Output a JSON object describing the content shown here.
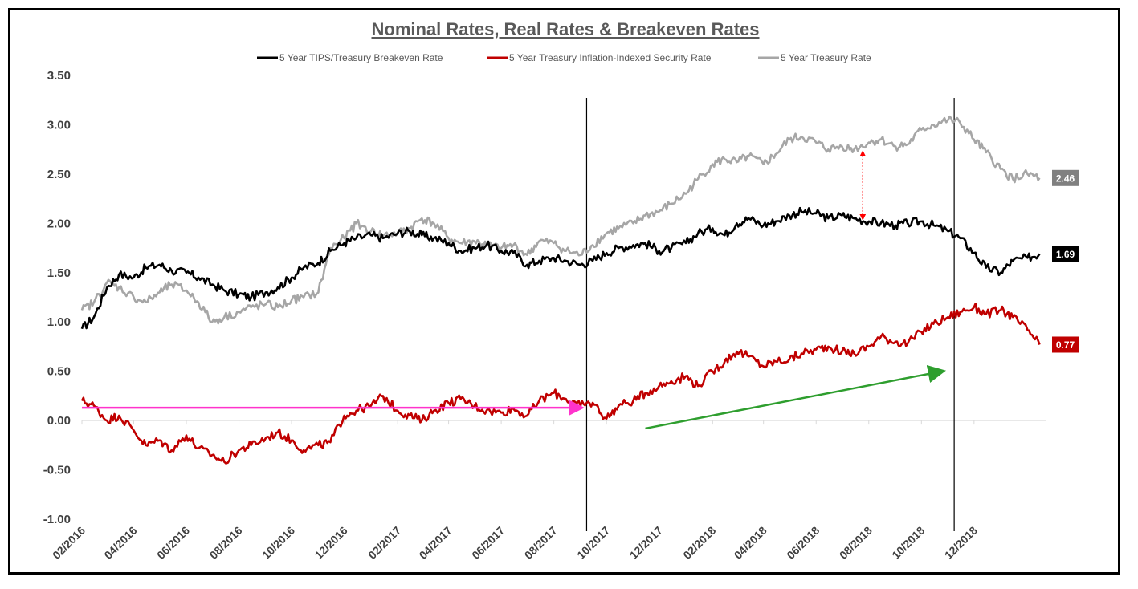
{
  "chart_data": {
    "type": "line",
    "title": "Nominal Rates, Real Rates & Breakeven Rates",
    "ylim": [
      -1.0,
      3.5
    ],
    "yticks": [
      "3.50",
      "3.00",
      "2.50",
      "2.00",
      "1.50",
      "1.00",
      "0.50",
      "0.00",
      "-0.50",
      "-1.00"
    ],
    "ytick_values": [
      3.5,
      3.0,
      2.5,
      2.0,
      1.5,
      1.0,
      0.5,
      0.0,
      -0.5,
      -1.0
    ],
    "xlim": [
      "2016-02",
      "2019-01"
    ],
    "xticks": [
      "02/2016",
      "04/2016",
      "06/2016",
      "08/2016",
      "10/2016",
      "12/2016",
      "02/2017",
      "04/2017",
      "06/2017",
      "08/2017",
      "10/2017",
      "12/2017",
      "02/2018",
      "04/2018",
      "06/2018",
      "08/2018",
      "10/2018",
      "12/2018"
    ],
    "grid": false,
    "legend_position": "top",
    "series": [
      {
        "name": "5 Year TIPS/Treasury Breakeven Rate",
        "color": "#000000",
        "end_label": "1.69",
        "x": [
          "2016-02-01",
          "2016-02-15",
          "2016-03-01",
          "2016-03-15",
          "2016-04-01",
          "2016-04-15",
          "2016-05-01",
          "2016-05-15",
          "2016-06-01",
          "2016-06-15",
          "2016-07-01",
          "2016-07-15",
          "2016-08-01",
          "2016-08-15",
          "2016-09-01",
          "2016-09-15",
          "2016-10-01",
          "2016-10-15",
          "2016-11-01",
          "2016-11-15",
          "2016-12-01",
          "2016-12-15",
          "2017-01-01",
          "2017-01-15",
          "2017-02-01",
          "2017-02-15",
          "2017-03-01",
          "2017-03-15",
          "2017-04-01",
          "2017-04-15",
          "2017-05-01",
          "2017-05-15",
          "2017-06-01",
          "2017-06-15",
          "2017-07-01",
          "2017-07-15",
          "2017-08-01",
          "2017-08-15",
          "2017-09-01",
          "2017-09-15",
          "2017-10-01",
          "2017-10-15",
          "2017-11-01",
          "2017-11-15",
          "2017-12-01",
          "2017-12-15",
          "2018-01-01",
          "2018-01-15",
          "2018-02-01",
          "2018-02-15",
          "2018-03-01",
          "2018-03-15",
          "2018-04-01",
          "2018-04-15",
          "2018-05-01",
          "2018-05-15",
          "2018-06-01",
          "2018-06-15",
          "2018-07-01",
          "2018-07-15",
          "2018-08-01",
          "2018-08-15",
          "2018-09-01",
          "2018-09-15",
          "2018-10-01",
          "2018-10-15",
          "2018-11-01",
          "2018-11-15",
          "2018-12-01",
          "2018-12-15",
          "2019-01-01",
          "2019-01-15",
          "2019-02-01",
          "2019-02-15"
        ],
        "values": [
          0.93,
          1.05,
          1.35,
          1.48,
          1.45,
          1.55,
          1.58,
          1.52,
          1.5,
          1.45,
          1.38,
          1.32,
          1.28,
          1.25,
          1.3,
          1.35,
          1.45,
          1.55,
          1.6,
          1.72,
          1.8,
          1.85,
          1.88,
          1.85,
          1.9,
          1.92,
          1.88,
          1.85,
          1.8,
          1.72,
          1.75,
          1.78,
          1.72,
          1.7,
          1.58,
          1.62,
          1.65,
          1.62,
          1.58,
          1.62,
          1.7,
          1.75,
          1.78,
          1.8,
          1.72,
          1.75,
          1.8,
          1.9,
          1.95,
          1.88,
          2.0,
          2.05,
          1.98,
          2.02,
          2.08,
          2.12,
          2.1,
          2.05,
          2.08,
          2.05,
          2.02,
          2.0,
          1.98,
          2.0,
          2.02,
          1.98,
          1.92,
          1.85,
          1.7,
          1.55,
          1.5,
          1.62,
          1.65,
          1.69
        ]
      },
      {
        "name": "5 Year Treasury Inflation-Indexed Security Rate",
        "color": "#c00000",
        "end_label": "0.77",
        "x": [
          "2016-02-01",
          "2016-02-15",
          "2016-03-01",
          "2016-03-15",
          "2016-04-01",
          "2016-04-15",
          "2016-05-01",
          "2016-05-15",
          "2016-06-01",
          "2016-06-15",
          "2016-07-01",
          "2016-07-15",
          "2016-08-01",
          "2016-08-15",
          "2016-09-01",
          "2016-09-15",
          "2016-10-01",
          "2016-10-15",
          "2016-11-01",
          "2016-11-15",
          "2016-12-01",
          "2016-12-15",
          "2017-01-01",
          "2017-01-15",
          "2017-02-01",
          "2017-02-15",
          "2017-03-01",
          "2017-03-15",
          "2017-04-01",
          "2017-04-15",
          "2017-05-01",
          "2017-05-15",
          "2017-06-01",
          "2017-06-15",
          "2017-07-01",
          "2017-07-15",
          "2017-08-01",
          "2017-08-15",
          "2017-09-01",
          "2017-09-15",
          "2017-10-01",
          "2017-10-15",
          "2017-11-01",
          "2017-11-15",
          "2017-12-01",
          "2017-12-15",
          "2018-01-01",
          "2018-01-15",
          "2018-02-01",
          "2018-02-15",
          "2018-03-01",
          "2018-03-15",
          "2018-04-01",
          "2018-04-15",
          "2018-05-01",
          "2018-05-15",
          "2018-06-01",
          "2018-06-15",
          "2018-07-01",
          "2018-07-15",
          "2018-08-01",
          "2018-08-15",
          "2018-09-01",
          "2018-09-15",
          "2018-10-01",
          "2018-10-15",
          "2018-11-01",
          "2018-11-15",
          "2018-12-01",
          "2018-12-15",
          "2019-01-01",
          "2019-01-15",
          "2019-02-01",
          "2019-02-15"
        ],
        "values": [
          0.2,
          0.15,
          0.0,
          0.05,
          -0.1,
          -0.25,
          -0.2,
          -0.3,
          -0.15,
          -0.28,
          -0.35,
          -0.42,
          -0.3,
          -0.25,
          -0.18,
          -0.12,
          -0.2,
          -0.3,
          -0.25,
          -0.22,
          0.05,
          0.1,
          0.15,
          0.25,
          0.1,
          0.05,
          0.0,
          0.1,
          0.18,
          0.22,
          0.15,
          0.1,
          0.08,
          0.12,
          0.05,
          0.2,
          0.28,
          0.22,
          0.15,
          0.18,
          0.02,
          0.15,
          0.2,
          0.28,
          0.35,
          0.4,
          0.45,
          0.35,
          0.5,
          0.6,
          0.7,
          0.65,
          0.55,
          0.6,
          0.62,
          0.68,
          0.72,
          0.75,
          0.7,
          0.68,
          0.75,
          0.85,
          0.8,
          0.78,
          0.9,
          0.98,
          1.05,
          1.1,
          1.15,
          1.08,
          1.12,
          1.05,
          0.92,
          0.77
        ]
      },
      {
        "name": "5 Year Treasury Rate",
        "color": "#a6a6a6",
        "end_label": "2.46",
        "x": [
          "2016-02-01",
          "2016-02-15",
          "2016-03-01",
          "2016-03-15",
          "2016-04-01",
          "2016-04-15",
          "2016-05-01",
          "2016-05-15",
          "2016-06-01",
          "2016-06-15",
          "2016-07-01",
          "2016-07-15",
          "2016-08-01",
          "2016-08-15",
          "2016-09-01",
          "2016-09-15",
          "2016-10-01",
          "2016-10-15",
          "2016-11-01",
          "2016-11-15",
          "2016-12-01",
          "2016-12-15",
          "2017-01-01",
          "2017-01-15",
          "2017-02-01",
          "2017-02-15",
          "2017-03-01",
          "2017-03-15",
          "2017-04-01",
          "2017-04-15",
          "2017-05-01",
          "2017-05-15",
          "2017-06-01",
          "2017-06-15",
          "2017-07-01",
          "2017-07-15",
          "2017-08-01",
          "2017-08-15",
          "2017-09-01",
          "2017-09-15",
          "2017-10-01",
          "2017-10-15",
          "2017-11-01",
          "2017-11-15",
          "2017-12-01",
          "2017-12-15",
          "2018-01-01",
          "2018-01-15",
          "2018-02-01",
          "2018-02-15",
          "2018-03-01",
          "2018-03-15",
          "2018-04-01",
          "2018-04-15",
          "2018-05-01",
          "2018-05-15",
          "2018-06-01",
          "2018-06-15",
          "2018-07-01",
          "2018-07-15",
          "2018-08-01",
          "2018-08-15",
          "2018-09-01",
          "2018-09-15",
          "2018-10-01",
          "2018-10-15",
          "2018-11-01",
          "2018-11-15",
          "2018-12-01",
          "2018-12-15",
          "2019-01-01",
          "2019-01-15",
          "2019-02-01",
          "2019-02-15"
        ],
        "values": [
          1.12,
          1.2,
          1.4,
          1.35,
          1.25,
          1.2,
          1.3,
          1.38,
          1.32,
          1.2,
          1.0,
          1.05,
          1.1,
          1.15,
          1.18,
          1.15,
          1.22,
          1.25,
          1.3,
          1.75,
          1.85,
          2.0,
          1.92,
          1.88,
          1.9,
          1.95,
          2.05,
          2.0,
          1.85,
          1.8,
          1.82,
          1.78,
          1.75,
          1.78,
          1.68,
          1.82,
          1.8,
          1.72,
          1.68,
          1.78,
          1.9,
          1.95,
          2.0,
          2.08,
          2.12,
          2.2,
          2.3,
          2.45,
          2.6,
          2.65,
          2.62,
          2.68,
          2.6,
          2.7,
          2.85,
          2.88,
          2.82,
          2.75,
          2.78,
          2.75,
          2.82,
          2.85,
          2.78,
          2.8,
          2.95,
          3.0,
          3.05,
          3.02,
          2.85,
          2.72,
          2.55,
          2.45,
          2.5,
          2.46
        ]
      }
    ]
  },
  "legend": [
    {
      "label": "5 Year TIPS/Treasury Breakeven Rate",
      "color": "#000000"
    },
    {
      "label": "5 Year Treasury Inflation-Indexed Security Rate",
      "color": "#c00000"
    },
    {
      "label": "5 Year Treasury Rate",
      "color": "#a6a6a6"
    }
  ],
  "annotations": {
    "vlines": [
      "2017-09-08",
      "2018-11-08"
    ],
    "pink_arrow": {
      "y": 0.13,
      "from": "2016-02-01",
      "to": "2017-09-01",
      "color": "#ff33cc"
    },
    "green_arrow": {
      "from": {
        "x": "2017-11-15",
        "y": -0.08
      },
      "to": {
        "x": "2018-10-25",
        "y": 0.5
      },
      "color": "#2e9e2e"
    },
    "red_double_arrow": {
      "x": "2018-07-25",
      "from": 2.72,
      "to": 2.05,
      "color": "#ff0000"
    }
  }
}
